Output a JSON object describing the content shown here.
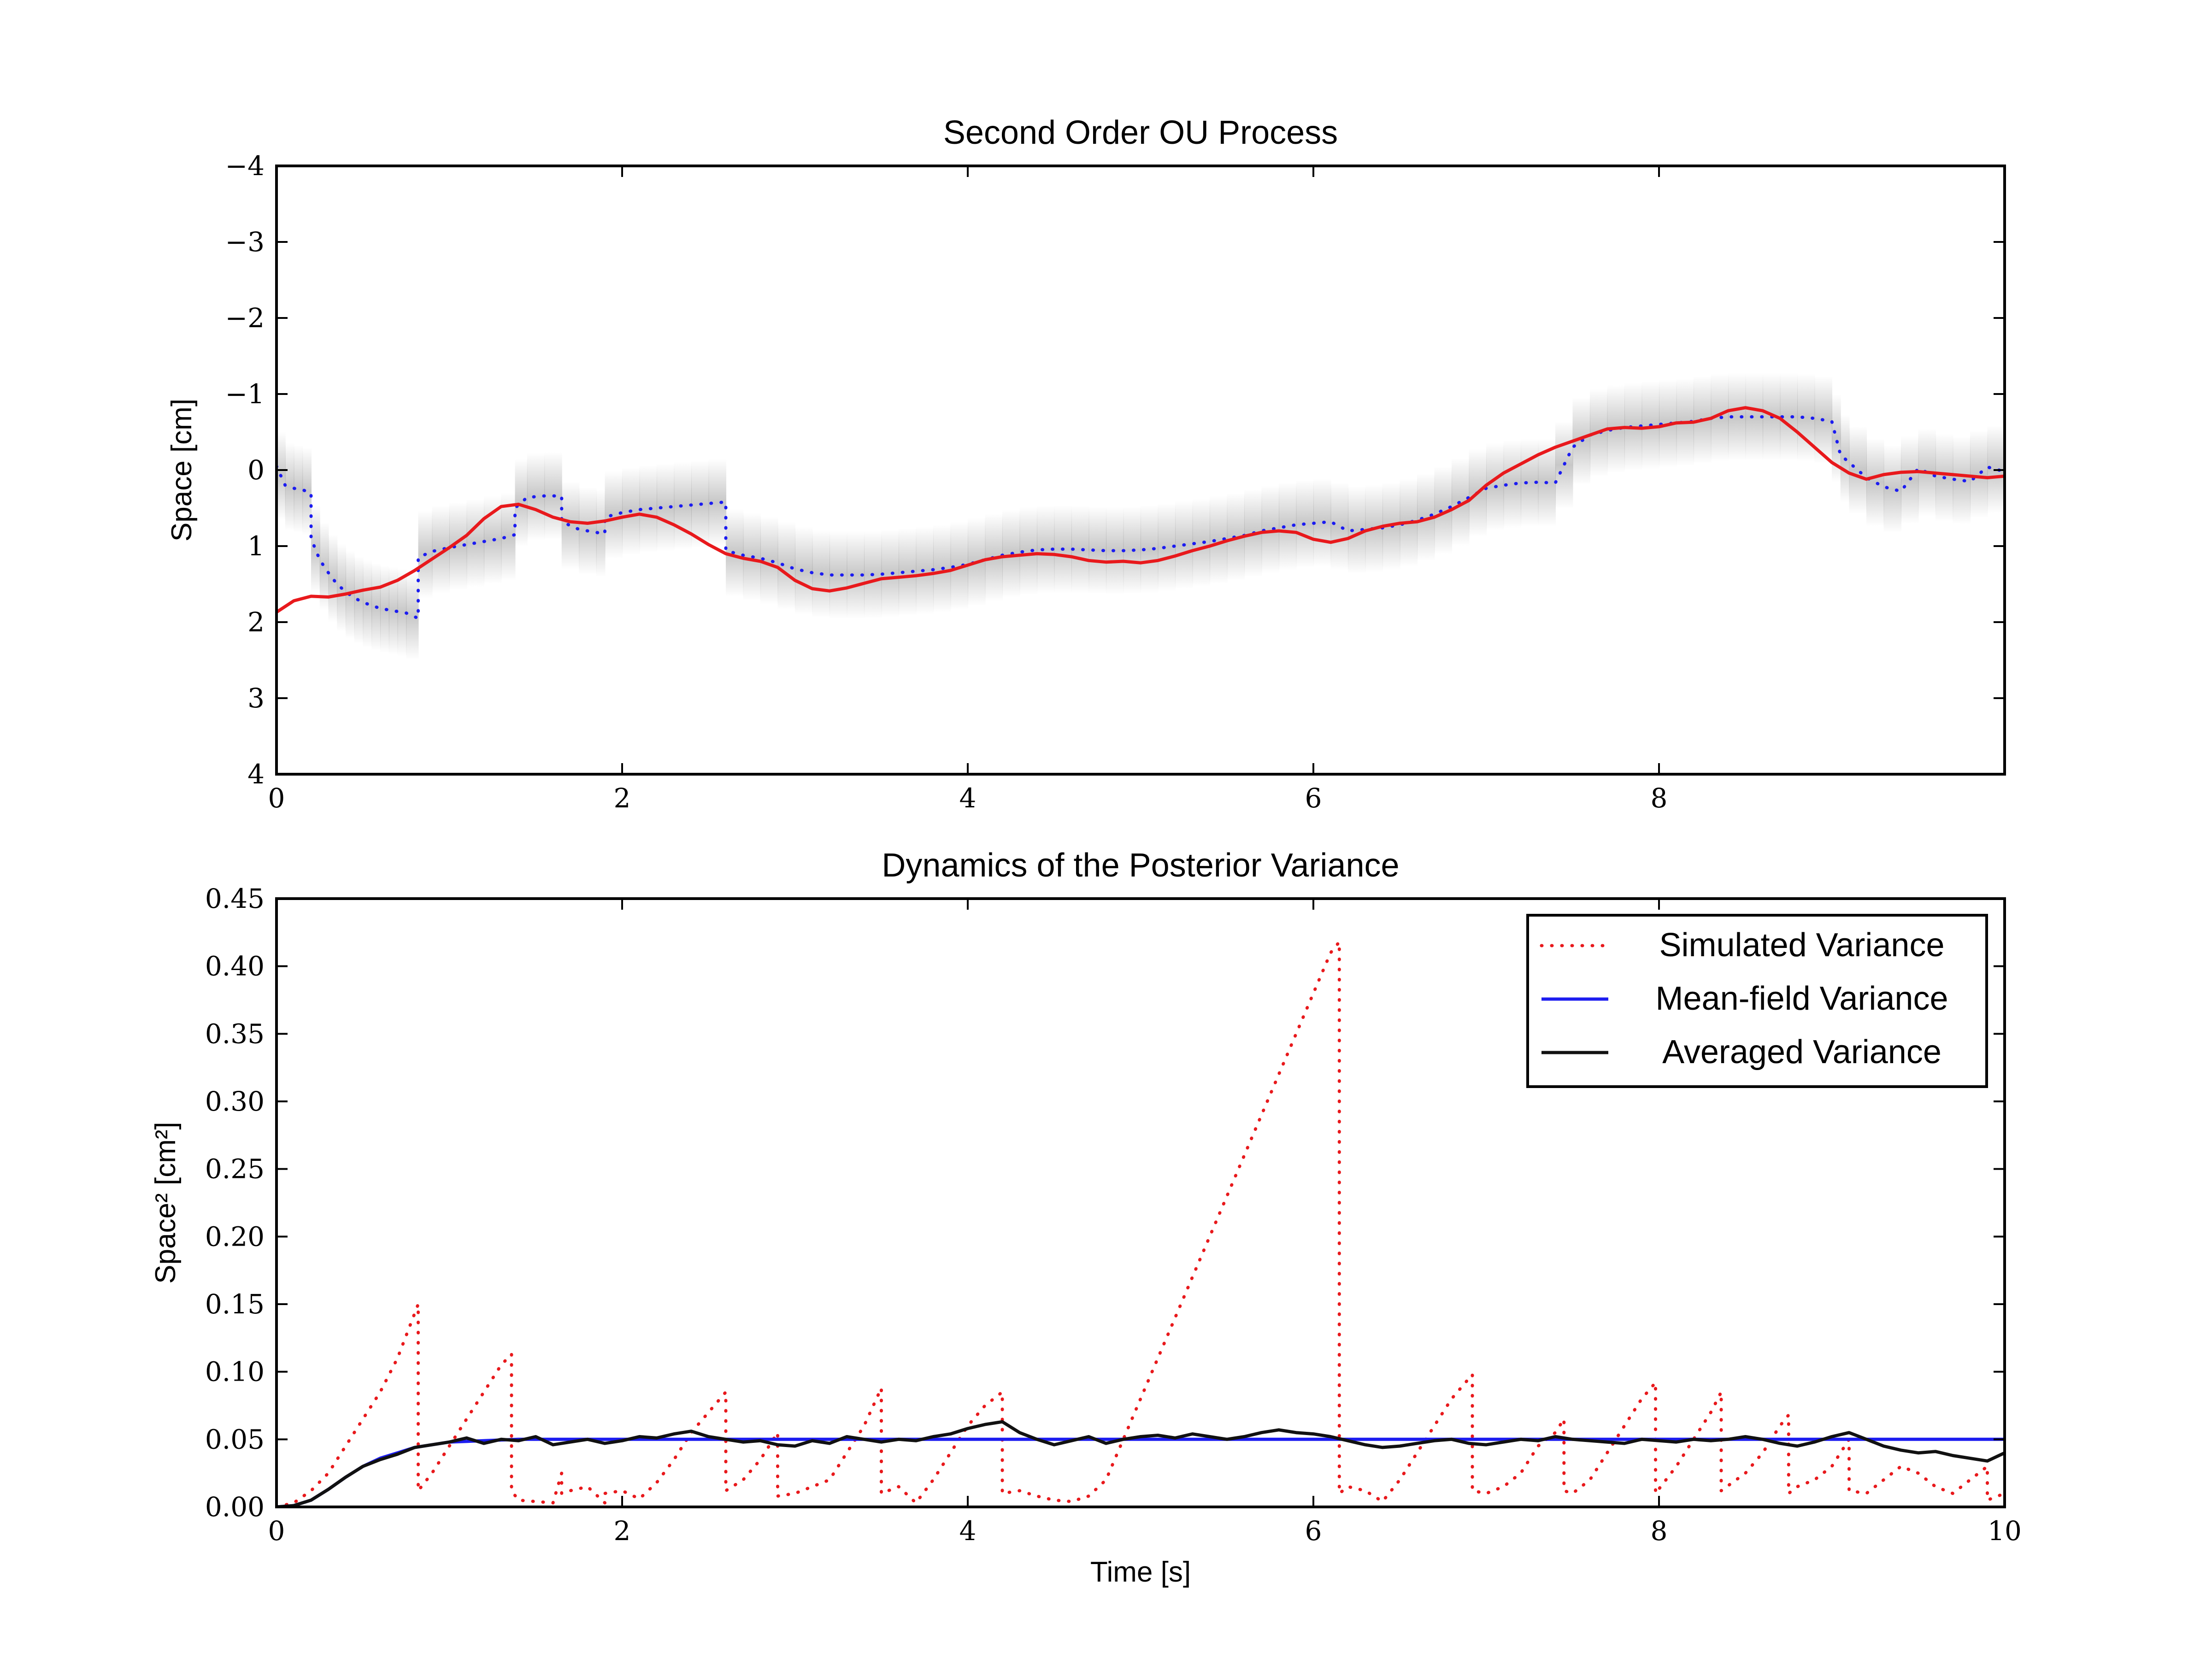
{
  "chart_data": [
    {
      "type": "line",
      "title": "Second Order OU Process",
      "xlabel": "",
      "ylabel": "Space [cm]",
      "xlim": [
        0,
        10
      ],
      "ylim": [
        4,
        -4
      ],
      "y_inverted": true,
      "xticks": [
        "0",
        "2",
        "4",
        "6",
        "8"
      ],
      "yticks": [
        "−4",
        "−3",
        "−2",
        "−1",
        "0",
        "1",
        "2",
        "3",
        "4"
      ],
      "grid": false,
      "legend": "none",
      "colors": {
        "series_red": "#e8191c",
        "series_blue": "#1c1cf0",
        "band": "#9a9a9a"
      },
      "series": [
        {
          "style": "solid",
          "color": "#e8191c",
          "x": [
            0,
            0.1,
            0.2,
            0.3,
            0.4,
            0.5,
            0.6,
            0.7,
            0.8,
            0.9,
            1.0,
            1.1,
            1.2,
            1.3,
            1.4,
            1.5,
            1.6,
            1.7,
            1.8,
            1.9,
            2.0,
            2.1,
            2.2,
            2.3,
            2.4,
            2.5,
            2.6,
            2.7,
            2.8,
            2.9,
            3.0,
            3.1,
            3.2,
            3.3,
            3.4,
            3.5,
            3.6,
            3.7,
            3.8,
            3.9,
            4.0,
            4.1,
            4.2,
            4.3,
            4.4,
            4.5,
            4.6,
            4.7,
            4.8,
            4.9,
            5.0,
            5.1,
            5.2,
            5.3,
            5.4,
            5.5,
            5.6,
            5.7,
            5.8,
            5.9,
            6.0,
            6.1,
            6.2,
            6.3,
            6.4,
            6.5,
            6.6,
            6.7,
            6.8,
            6.9,
            7.0,
            7.1,
            7.2,
            7.3,
            7.4,
            7.5,
            7.6,
            7.7,
            7.8,
            7.9,
            8.0,
            8.1,
            8.2,
            8.3,
            8.4,
            8.5,
            8.6,
            8.7,
            8.8,
            8.9,
            9.0,
            9.1,
            9.2,
            9.3,
            9.4,
            9.5,
            9.6,
            9.7,
            9.8,
            9.9,
            10.0
          ],
          "y": [
            1.87,
            1.72,
            1.66,
            1.67,
            1.63,
            1.58,
            1.54,
            1.45,
            1.32,
            1.17,
            1.02,
            0.86,
            0.64,
            0.48,
            0.45,
            0.52,
            0.62,
            0.68,
            0.7,
            0.67,
            0.62,
            0.58,
            0.62,
            0.72,
            0.84,
            0.98,
            1.1,
            1.16,
            1.2,
            1.28,
            1.45,
            1.56,
            1.59,
            1.55,
            1.49,
            1.43,
            1.41,
            1.39,
            1.36,
            1.32,
            1.25,
            1.18,
            1.14,
            1.12,
            1.1,
            1.11,
            1.14,
            1.19,
            1.21,
            1.2,
            1.22,
            1.19,
            1.13,
            1.06,
            1.0,
            0.93,
            0.87,
            0.82,
            0.8,
            0.82,
            0.91,
            0.95,
            0.9,
            0.8,
            0.74,
            0.7,
            0.68,
            0.62,
            0.52,
            0.4,
            0.2,
            0.04,
            -0.08,
            -0.2,
            -0.3,
            -0.38,
            -0.46,
            -0.54,
            -0.56,
            -0.55,
            -0.57,
            -0.62,
            -0.63,
            -0.68,
            -0.78,
            -0.82,
            -0.78,
            -0.68,
            -0.5,
            -0.3,
            -0.1,
            0.04,
            0.12,
            0.06,
            0.03,
            0.02,
            0.04,
            0.06,
            0.08,
            0.1,
            0.08
          ]
        },
        {
          "style": "dotted",
          "color": "#1c1cf0",
          "x": [
            0,
            0.05,
            0.1,
            0.15,
            0.2,
            0.2,
            0.25,
            0.3,
            0.35,
            0.4,
            0.45,
            0.5,
            0.55,
            0.6,
            0.65,
            0.7,
            0.75,
            0.82,
            0.82,
            0.9,
            1.0,
            1.1,
            1.2,
            1.3,
            1.38,
            1.38,
            1.45,
            1.55,
            1.65,
            1.65,
            1.75,
            1.85,
            1.9,
            1.9,
            2.0,
            2.1,
            2.2,
            2.3,
            2.4,
            2.5,
            2.6,
            2.6,
            2.7,
            2.8,
            2.9,
            3.0,
            3.1,
            3.2,
            3.3,
            3.4,
            3.5,
            3.6,
            3.7,
            3.8,
            3.9,
            4.0,
            4.1,
            4.2,
            4.3,
            4.4,
            4.5,
            4.6,
            4.7,
            4.8,
            4.9,
            5.0,
            5.1,
            5.2,
            5.3,
            5.4,
            5.5,
            5.6,
            5.7,
            5.8,
            5.9,
            6.0,
            6.1,
            6.2,
            6.3,
            6.4,
            6.5,
            6.6,
            6.7,
            6.8,
            6.9,
            7.0,
            7.1,
            7.2,
            7.3,
            7.4,
            7.5,
            7.6,
            7.7,
            7.8,
            7.9,
            8.0,
            8.1,
            8.2,
            8.3,
            8.4,
            8.5,
            8.6,
            8.7,
            8.8,
            8.9,
            9.0,
            9.05,
            9.1,
            9.2,
            9.3,
            9.4,
            9.5,
            9.6,
            9.7,
            9.8,
            9.9,
            10.0
          ],
          "y": [
            -0.05,
            0.2,
            0.24,
            0.26,
            0.3,
            0.9,
            1.18,
            1.35,
            1.5,
            1.6,
            1.68,
            1.74,
            1.78,
            1.82,
            1.84,
            1.86,
            1.88,
            1.95,
            1.15,
            1.07,
            1.02,
            0.98,
            0.94,
            0.9,
            0.85,
            0.5,
            0.36,
            0.34,
            0.34,
            0.68,
            0.78,
            0.82,
            0.84,
            0.62,
            0.56,
            0.52,
            0.5,
            0.48,
            0.46,
            0.44,
            0.42,
            1.06,
            1.12,
            1.16,
            1.22,
            1.3,
            1.35,
            1.38,
            1.38,
            1.38,
            1.37,
            1.35,
            1.33,
            1.31,
            1.28,
            1.24,
            1.18,
            1.12,
            1.08,
            1.05,
            1.04,
            1.04,
            1.05,
            1.06,
            1.06,
            1.05,
            1.03,
            1.0,
            0.97,
            0.94,
            0.9,
            0.86,
            0.8,
            0.76,
            0.72,
            0.7,
            0.68,
            0.8,
            0.78,
            0.76,
            0.72,
            0.66,
            0.58,
            0.48,
            0.36,
            0.24,
            0.2,
            0.17,
            0.16,
            0.17,
            -0.3,
            -0.46,
            -0.52,
            -0.56,
            -0.58,
            -0.6,
            -0.62,
            -0.64,
            -0.68,
            -0.7,
            -0.7,
            -0.7,
            -0.7,
            -0.7,
            -0.68,
            -0.64,
            -0.2,
            -0.1,
            0.1,
            0.22,
            0.28,
            -0.02,
            0.08,
            0.12,
            0.15,
            -0.04,
            0.02
          ]
        }
      ]
    },
    {
      "type": "line",
      "title": "Dynamics of the Posterior Variance",
      "xlabel": "Time [s]",
      "ylabel": "Space² [cm²]",
      "xlim": [
        0,
        10
      ],
      "ylim": [
        0,
        0.45
      ],
      "xticks": [
        "0",
        "2",
        "4",
        "6",
        "8",
        "10"
      ],
      "yticks": [
        "0.00",
        "0.05",
        "0.10",
        "0.15",
        "0.20",
        "0.25",
        "0.30",
        "0.35",
        "0.40",
        "0.45"
      ],
      "grid": false,
      "legend": "top-right",
      "series": [
        {
          "name": "Simulated Variance",
          "style": "dotted",
          "color": "#e8191c",
          "x": [
            0,
            0.1,
            0.2,
            0.3,
            0.4,
            0.5,
            0.6,
            0.7,
            0.82,
            0.82,
            0.9,
            1.0,
            1.1,
            1.2,
            1.3,
            1.36,
            1.36,
            1.4,
            1.5,
            1.6,
            1.65,
            1.65,
            1.7,
            1.8,
            1.9,
            1.9,
            2.0,
            2.1,
            2.2,
            2.3,
            2.4,
            2.5,
            2.6,
            2.6,
            2.7,
            2.8,
            2.9,
            2.9,
            3.0,
            3.1,
            3.2,
            3.3,
            3.4,
            3.5,
            3.5,
            3.6,
            3.7,
            3.8,
            3.9,
            4.0,
            4.1,
            4.2,
            4.2,
            4.3,
            4.4,
            4.5,
            4.6,
            4.7,
            4.8,
            4.9,
            5.0,
            5.1,
            5.2,
            5.3,
            5.4,
            5.5,
            5.6,
            5.7,
            5.8,
            5.9,
            6.0,
            6.1,
            6.15,
            6.15,
            6.2,
            6.3,
            6.4,
            6.5,
            6.6,
            6.7,
            6.8,
            6.92,
            6.92,
            7.0,
            7.1,
            7.2,
            7.3,
            7.4,
            7.45,
            7.45,
            7.5,
            7.6,
            7.7,
            7.8,
            7.9,
            7.98,
            7.98,
            8.1,
            8.2,
            8.3,
            8.36,
            8.36,
            8.5,
            8.6,
            8.7,
            8.75,
            8.75,
            8.8,
            8.9,
            9.0,
            9.1,
            9.1,
            9.2,
            9.3,
            9.4,
            9.5,
            9.6,
            9.7,
            9.8,
            9.9,
            9.9,
            10.0
          ],
          "y": [
            0,
            0.003,
            0.012,
            0.025,
            0.045,
            0.065,
            0.085,
            0.11,
            0.15,
            0.012,
            0.025,
            0.045,
            0.065,
            0.085,
            0.105,
            0.113,
            0.012,
            0.005,
            0.004,
            0.003,
            0.025,
            0.01,
            0.012,
            0.015,
            0.003,
            0.01,
            0.012,
            0.006,
            0.018,
            0.035,
            0.055,
            0.07,
            0.085,
            0.012,
            0.02,
            0.035,
            0.055,
            0.008,
            0.01,
            0.015,
            0.02,
            0.04,
            0.06,
            0.088,
            0.01,
            0.015,
            0.003,
            0.02,
            0.04,
            0.06,
            0.075,
            0.085,
            0.01,
            0.012,
            0.008,
            0.005,
            0.004,
            0.008,
            0.02,
            0.05,
            0.08,
            0.11,
            0.14,
            0.17,
            0.2,
            0.23,
            0.26,
            0.29,
            0.32,
            0.35,
            0.38,
            0.41,
            0.418,
            0.01,
            0.015,
            0.012,
            0.004,
            0.02,
            0.04,
            0.06,
            0.08,
            0.098,
            0.012,
            0.01,
            0.015,
            0.025,
            0.045,
            0.055,
            0.065,
            0.012,
            0.01,
            0.02,
            0.04,
            0.06,
            0.08,
            0.092,
            0.01,
            0.03,
            0.05,
            0.07,
            0.085,
            0.012,
            0.025,
            0.04,
            0.06,
            0.068,
            0.01,
            0.015,
            0.02,
            0.03,
            0.05,
            0.012,
            0.01,
            0.02,
            0.03,
            0.025,
            0.015,
            0.01,
            0.02,
            0.03,
            0.005,
            0.01
          ]
        },
        {
          "name": "Mean-field Variance",
          "style": "solid",
          "color": "#1c1cf0",
          "x": [
            0,
            0.1,
            0.2,
            0.3,
            0.4,
            0.5,
            0.6,
            0.7,
            0.8,
            0.9,
            1.0,
            1.2,
            1.4,
            1.6,
            2.0,
            4.0,
            6.0,
            8.0,
            10.0
          ],
          "y": [
            0,
            0.001,
            0.005,
            0.013,
            0.022,
            0.03,
            0.036,
            0.04,
            0.044,
            0.046,
            0.048,
            0.049,
            0.05,
            0.05,
            0.05,
            0.05,
            0.05,
            0.05,
            0.05
          ]
        },
        {
          "name": "Averaged Variance",
          "style": "solid",
          "color": "#111111",
          "x": [
            0,
            0.1,
            0.2,
            0.3,
            0.4,
            0.5,
            0.6,
            0.7,
            0.8,
            0.9,
            1.0,
            1.1,
            1.2,
            1.3,
            1.4,
            1.5,
            1.6,
            1.7,
            1.8,
            1.9,
            2.0,
            2.1,
            2.2,
            2.3,
            2.4,
            2.5,
            2.6,
            2.7,
            2.8,
            2.9,
            3.0,
            3.1,
            3.2,
            3.3,
            3.4,
            3.5,
            3.6,
            3.7,
            3.8,
            3.9,
            4.0,
            4.1,
            4.2,
            4.3,
            4.4,
            4.5,
            4.6,
            4.7,
            4.8,
            4.9,
            5.0,
            5.1,
            5.2,
            5.3,
            5.4,
            5.5,
            5.6,
            5.7,
            5.8,
            5.9,
            6.0,
            6.1,
            6.2,
            6.3,
            6.4,
            6.5,
            6.6,
            6.7,
            6.8,
            6.9,
            7.0,
            7.1,
            7.2,
            7.3,
            7.4,
            7.5,
            7.6,
            7.7,
            7.8,
            7.9,
            8.0,
            8.1,
            8.2,
            8.3,
            8.4,
            8.5,
            8.6,
            8.7,
            8.8,
            8.9,
            9.0,
            9.1,
            9.2,
            9.3,
            9.4,
            9.5,
            9.6,
            9.7,
            9.8,
            9.9,
            10.0
          ],
          "y": [
            0,
            0.001,
            0.005,
            0.013,
            0.022,
            0.03,
            0.035,
            0.039,
            0.044,
            0.046,
            0.048,
            0.051,
            0.047,
            0.05,
            0.049,
            0.052,
            0.046,
            0.048,
            0.05,
            0.047,
            0.049,
            0.052,
            0.051,
            0.054,
            0.056,
            0.052,
            0.05,
            0.048,
            0.049,
            0.046,
            0.045,
            0.049,
            0.047,
            0.052,
            0.05,
            0.048,
            0.05,
            0.049,
            0.052,
            0.054,
            0.058,
            0.061,
            0.063,
            0.055,
            0.05,
            0.046,
            0.049,
            0.052,
            0.047,
            0.05,
            0.052,
            0.053,
            0.051,
            0.054,
            0.052,
            0.05,
            0.052,
            0.055,
            0.057,
            0.055,
            0.054,
            0.052,
            0.049,
            0.046,
            0.044,
            0.045,
            0.047,
            0.049,
            0.05,
            0.047,
            0.046,
            0.048,
            0.05,
            0.049,
            0.052,
            0.05,
            0.049,
            0.048,
            0.047,
            0.05,
            0.049,
            0.048,
            0.05,
            0.049,
            0.05,
            0.052,
            0.05,
            0.047,
            0.045,
            0.048,
            0.052,
            0.055,
            0.05,
            0.045,
            0.042,
            0.04,
            0.041,
            0.038,
            0.036,
            0.034,
            0.04
          ]
        }
      ]
    }
  ]
}
